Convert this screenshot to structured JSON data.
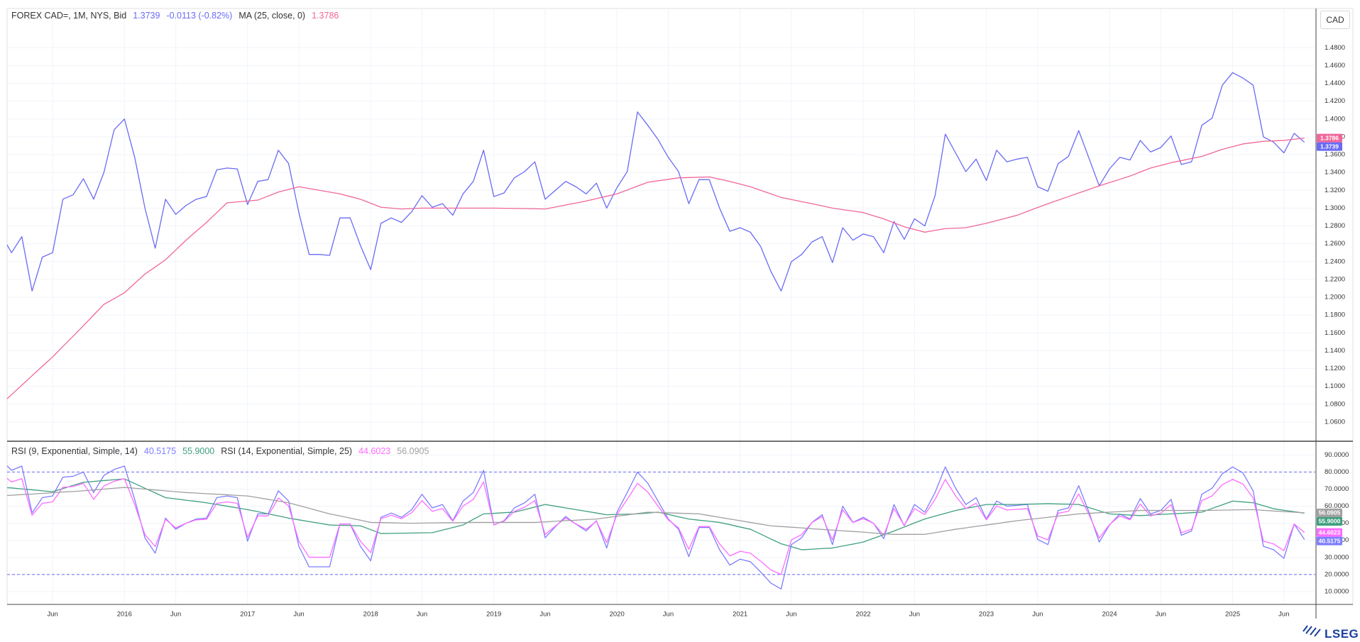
{
  "brand": "LSEG",
  "chart_data": {
    "type": "line",
    "unit": "CAD",
    "categories": [
      null,
      null,
      null,
      null,
      null,
      "Jun",
      null,
      null,
      null,
      null,
      null,
      null,
      "2016",
      null,
      null,
      null,
      null,
      "Jun",
      null,
      null,
      null,
      null,
      null,
      null,
      "2017",
      null,
      null,
      null,
      null,
      "Jun",
      null,
      null,
      null,
      null,
      null,
      null,
      "2018",
      null,
      null,
      null,
      null,
      "Jun",
      null,
      null,
      null,
      null,
      null,
      null,
      "2019",
      null,
      null,
      null,
      null,
      "Jun",
      null,
      null,
      null,
      null,
      null,
      null,
      "2020",
      null,
      null,
      null,
      null,
      "Jun",
      null,
      null,
      null,
      null,
      null,
      null,
      "2021",
      null,
      null,
      null,
      null,
      "Jun",
      null,
      null,
      null,
      null,
      null,
      null,
      "2022",
      null,
      null,
      null,
      null,
      "Jun",
      null,
      null,
      null,
      null,
      null,
      null,
      "2023",
      null,
      null,
      null,
      null,
      "Jun",
      null,
      null,
      null,
      null,
      null,
      null,
      "2024",
      null,
      null,
      null,
      null,
      "Jun",
      null,
      null,
      null,
      null,
      null,
      null,
      "2025",
      null,
      null,
      null,
      null,
      "Jun",
      null,
      null
    ],
    "ylim": [
      1.04,
      1.524
    ],
    "yticks": [
      {
        "value": 1.06,
        "label": "1.0600"
      },
      {
        "value": 1.08,
        "label": "1.0800"
      },
      {
        "value": 1.1,
        "label": "1.1000"
      },
      {
        "value": 1.12,
        "label": "1.1200"
      },
      {
        "value": 1.14,
        "label": "1.1400"
      },
      {
        "value": 1.16,
        "label": "1.1600"
      },
      {
        "value": 1.18,
        "label": "1.1800"
      },
      {
        "value": 1.2,
        "label": "1.2000"
      },
      {
        "value": 1.22,
        "label": "1.2200"
      },
      {
        "value": 1.24,
        "label": "1.2400"
      },
      {
        "value": 1.26,
        "label": "1.2600"
      },
      {
        "value": 1.28,
        "label": "1.2800"
      },
      {
        "value": 1.3,
        "label": "1.3000"
      },
      {
        "value": 1.32,
        "label": "1.3200"
      },
      {
        "value": 1.34,
        "label": "1.3400"
      },
      {
        "value": 1.36,
        "label": "1.3600"
      },
      {
        "value": 1.38,
        "label": "1.3800"
      },
      {
        "value": 1.4,
        "label": "1.4000"
      },
      {
        "value": 1.42,
        "label": "1.4200"
      },
      {
        "value": 1.44,
        "label": "1.4400"
      },
      {
        "value": 1.46,
        "label": "1.4600"
      },
      {
        "value": 1.48,
        "label": "1.4800"
      }
    ],
    "y2lim": [
      2.5,
      97.2
    ],
    "y2ticks": [
      {
        "value": 10,
        "label": "10.0000"
      },
      {
        "value": 20,
        "label": "20.0000"
      },
      {
        "value": 30,
        "label": "30.0000"
      },
      {
        "value": 40,
        "label": "40.0000"
      },
      {
        "value": 50,
        "label": "50.0000"
      },
      {
        "value": 60,
        "label": "60.0000"
      },
      {
        "value": 70,
        "label": "70.0000"
      },
      {
        "value": 80,
        "label": "80.0000"
      },
      {
        "value": 90,
        "label": "90.0000"
      }
    ],
    "y2_hlines": [
      20,
      80
    ],
    "grid": true,
    "series": [
      {
        "name": "FOREX CAD=, 1M, NYS, Bid",
        "color": "#6a6af5",
        "last_label": "1.3739",
        "change_label": "-0.0113 (-0.82%)",
        "values": [
          1.27,
          1.25,
          1.268,
          1.207,
          1.245,
          1.25,
          1.31,
          1.315,
          1.333,
          1.31,
          1.34,
          1.388,
          1.4,
          1.357,
          1.3,
          1.255,
          1.31,
          1.293,
          1.303,
          1.31,
          1.313,
          1.343,
          1.345,
          1.344,
          1.304,
          1.33,
          1.332,
          1.365,
          1.35,
          1.295,
          1.248,
          1.248,
          1.247,
          1.289,
          1.289,
          1.258,
          1.231,
          1.283,
          1.289,
          1.284,
          1.296,
          1.314,
          1.301,
          1.305,
          1.292,
          1.316,
          1.33,
          1.365,
          1.313,
          1.317,
          1.334,
          1.341,
          1.352,
          1.31,
          1.32,
          1.33,
          1.324,
          1.316,
          1.328,
          1.3,
          1.323,
          1.341,
          1.408,
          1.393,
          1.377,
          1.357,
          1.341,
          1.305,
          1.332,
          1.332,
          1.3,
          1.274,
          1.278,
          1.273,
          1.257,
          1.229,
          1.207,
          1.24,
          1.248,
          1.262,
          1.268,
          1.239,
          1.278,
          1.264,
          1.271,
          1.268,
          1.25,
          1.285,
          1.265,
          1.288,
          1.28,
          1.314,
          1.383,
          1.362,
          1.341,
          1.355,
          1.331,
          1.365,
          1.352,
          1.355,
          1.357,
          1.324,
          1.319,
          1.35,
          1.358,
          1.387,
          1.356,
          1.325,
          1.344,
          1.357,
          1.354,
          1.376,
          1.363,
          1.368,
          1.381,
          1.349,
          1.352,
          1.393,
          1.401,
          1.438,
          1.452,
          1.446,
          1.438,
          1.38,
          1.374,
          1.362,
          1.384,
          1.3739
        ]
      },
      {
        "name": "MA (25, close, 0)",
        "color": "#f0679a",
        "last_label": "1.3786",
        "values": [
          1.08,
          1.0907,
          1.1013,
          1.112,
          1.1225,
          1.133,
          1.1447,
          1.1563,
          1.168,
          1.18,
          1.192,
          1.1985,
          1.205,
          1.2155,
          1.226,
          1.234,
          1.242,
          1.253,
          1.264,
          1.274,
          1.284,
          1.295,
          1.306,
          1.307,
          1.308,
          1.309,
          1.3135,
          1.318,
          1.321,
          1.324,
          1.322,
          1.32,
          1.318,
          1.316,
          1.313,
          1.31,
          1.3055,
          1.301,
          1.3,
          1.299,
          1.2995,
          1.3,
          1.3,
          1.3,
          1.3,
          1.3,
          1.3,
          1.3,
          1.3,
          1.2998,
          1.2997,
          1.2995,
          1.2993,
          1.299,
          1.3012,
          1.3035,
          1.3057,
          1.308,
          1.3107,
          1.3133,
          1.316,
          1.3203,
          1.3247,
          1.329,
          1.3307,
          1.3323,
          1.334,
          1.3343,
          1.3347,
          1.335,
          1.3325,
          1.33,
          1.327,
          1.324,
          1.32,
          1.316,
          1.312,
          1.3097,
          1.3073,
          1.305,
          1.3025,
          1.3,
          1.2983,
          1.2967,
          1.295,
          1.2915,
          1.288,
          1.2835,
          1.279,
          1.276,
          1.273,
          1.275,
          1.277,
          1.2775,
          1.278,
          1.2805,
          1.283,
          1.286,
          1.289,
          1.292,
          1.2963,
          1.3007,
          1.305,
          1.309,
          1.313,
          1.317,
          1.321,
          1.325,
          1.3287,
          1.3323,
          1.336,
          1.3405,
          1.345,
          1.348,
          1.351,
          1.3533,
          1.3557,
          1.358,
          1.362,
          1.366,
          1.369,
          1.372,
          1.3735,
          1.375,
          1.3755,
          1.376,
          1.3773,
          1.3786
        ]
      },
      {
        "name": "RSI (9, Exponential, Simple, 14)",
        "color": "#7d7dff",
        "axis": "y2",
        "last_label": "40.5175",
        "values": [
          87,
          81,
          83.5,
          56,
          65,
          66,
          77,
          77.5,
          80,
          68,
          78,
          81.5,
          83.5,
          64,
          41.5,
          32.5,
          53,
          46.5,
          50,
          52.5,
          53,
          65,
          66,
          65,
          39.5,
          55.5,
          55.5,
          69,
          63,
          36.5,
          24.5,
          24.5,
          24.5,
          49.5,
          49.5,
          36.5,
          28,
          53.5,
          56,
          53.5,
          58,
          67,
          59,
          61,
          51.5,
          63,
          68,
          81,
          49,
          51.5,
          59,
          62,
          67,
          41.5,
          48,
          54,
          49.5,
          45.5,
          51.5,
          35.5,
          56.5,
          68,
          80,
          73.5,
          63,
          52.5,
          46.5,
          30.5,
          47.5,
          47.5,
          34.5,
          25.5,
          29,
          27.5,
          21.5,
          15,
          11.5,
          37.5,
          41.5,
          50.5,
          55,
          37.5,
          60,
          50.5,
          53.5,
          50,
          41,
          61,
          48.5,
          61,
          56.5,
          68,
          83,
          70.5,
          61,
          65,
          52.5,
          63,
          60,
          60.5,
          61,
          40.5,
          37.5,
          57.5,
          59,
          72,
          56.5,
          39,
          49,
          55.5,
          52.5,
          64.5,
          55.5,
          57.5,
          64,
          43,
          45.5,
          67,
          70.5,
          79,
          83,
          79.5,
          69,
          36.5,
          34.5,
          29.5,
          49.5,
          40.5175
        ]
      },
      {
        "color": "#3f9f7f",
        "axis": "y2",
        "last_label": "55.9000",
        "values": [
          71,
          70.7,
          70.1,
          69.6,
          69,
          68.5,
          70.3,
          72.2,
          74,
          74.5,
          75,
          75.5,
          76,
          73.3,
          70.5,
          67.8,
          65,
          64.3,
          63.5,
          62.8,
          62,
          61,
          60,
          59,
          58,
          56.8,
          55.5,
          54.3,
          53,
          52,
          51,
          50,
          49,
          48.8,
          48.7,
          48.5,
          46.3,
          44,
          44.1,
          44.2,
          44.3,
          44.4,
          44.5,
          46,
          47.5,
          49,
          52.3,
          55.5,
          55.8,
          56.2,
          56.5,
          58,
          59.5,
          61,
          60,
          59,
          58,
          57,
          56,
          55,
          55.2,
          55.3,
          55.5,
          56,
          56.5,
          55.2,
          53.8,
          52.5,
          51.8,
          51.2,
          50.5,
          49.2,
          47.8,
          46.5,
          43.7,
          40.8,
          38,
          36.3,
          34.5,
          34.8,
          35.2,
          35.5,
          36.7,
          37.8,
          39,
          41.2,
          43.3,
          45.5,
          47.8,
          50.2,
          52.5,
          54.2,
          55.8,
          57.5,
          58.7,
          59.8,
          61,
          61,
          61,
          61,
          61.2,
          61.3,
          61.5,
          61.3,
          61.2,
          61,
          59.2,
          57.3,
          55.5,
          55.2,
          54.8,
          54.5,
          54.8,
          55.2,
          55.5,
          55.8,
          56.2,
          56.5,
          58.7,
          60.8,
          63,
          62.5,
          62,
          60.3,
          58.5,
          57.6,
          56.8,
          55.9
        ]
      },
      {
        "name": "RSI (14, Exponential, Simple, 25)",
        "color": "#ff6cff",
        "axis": "y2",
        "last_label": "44.6023",
        "values": [
          78.9,
          74.2,
          76.1,
          54.7,
          61.7,
          62.5,
          71.1,
          71.5,
          73.4,
          64,
          71.8,
          74.6,
          76.1,
          60.9,
          43.4,
          36.4,
          52.3,
          47.3,
          50,
          52,
          52.3,
          61.7,
          62.5,
          61.7,
          41.8,
          54.3,
          54.3,
          64.8,
          60.1,
          39.5,
          30.1,
          30.1,
          30.1,
          49.6,
          49.6,
          39.5,
          32.8,
          52.7,
          54.7,
          52.7,
          56.2,
          63.3,
          57,
          58.6,
          51.2,
          60.1,
          64,
          74.2,
          49.2,
          51.2,
          57,
          59.4,
          63.3,
          43.4,
          48.4,
          53.1,
          49.6,
          46.5,
          51.2,
          38.7,
          55.1,
          64,
          73.4,
          68.3,
          60.1,
          52,
          47.3,
          34.8,
          48.1,
          48.1,
          37.9,
          30.9,
          33.6,
          32.5,
          27.8,
          22.7,
          20,
          40.3,
          43.4,
          50.4,
          53.9,
          40.3,
          57.8,
          50.4,
          52.7,
          50,
          43,
          58.6,
          48.8,
          58.6,
          55.1,
          64,
          75.7,
          66,
          58.6,
          61.7,
          52,
          60.1,
          57.8,
          58.2,
          58.6,
          42.6,
          40.3,
          55.9,
          57,
          67.2,
          55.1,
          41.4,
          49.2,
          54.3,
          52,
          61.3,
          54.3,
          55.9,
          60.9,
          44.5,
          46.5,
          63.3,
          66,
          72.6,
          75.7,
          73,
          64.8,
          39.5,
          37.9,
          34,
          49.6,
          44.6023
        ]
      },
      {
        "color": "#a0a0a0",
        "axis": "y2",
        "last_label": "56.0905",
        "values": [
          66,
          66.4,
          66.8,
          67.1,
          67.5,
          67.9,
          68.3,
          68.6,
          69,
          69.5,
          70,
          70.5,
          71,
          70.5,
          70,
          69.5,
          69,
          68.5,
          68,
          67.7,
          67.3,
          67,
          66.7,
          66.3,
          66,
          65,
          64,
          63,
          62,
          60.4,
          58.8,
          57.1,
          55.5,
          54.3,
          53,
          51.8,
          50.5,
          50.4,
          50.3,
          50.1,
          50,
          50.1,
          50.2,
          50.3,
          50.3,
          50.4,
          50.5,
          50.5,
          50.5,
          50.5,
          50.5,
          50.5,
          50.5,
          50.8,
          51.2,
          51.5,
          51.8,
          52.2,
          52.5,
          53.3,
          54.1,
          54.9,
          55.7,
          56.5,
          56.3,
          56.1,
          55.9,
          55.7,
          55.5,
          54.5,
          53.5,
          52.5,
          51.5,
          50.5,
          49.5,
          48.5,
          48.1,
          47.7,
          47.3,
          46.8,
          46.4,
          46,
          45.6,
          45.2,
          44.8,
          44.3,
          43.9,
          43.5,
          43.5,
          43.5,
          43.5,
          44.5,
          45.5,
          46.5,
          47.3,
          48.2,
          49,
          49.8,
          50.7,
          51.5,
          52.2,
          52.8,
          53.5,
          54.2,
          54.8,
          55.5,
          55.8,
          56.2,
          56.5,
          56.8,
          57.2,
          57.5,
          57.5,
          57.5,
          57.5,
          57.5,
          57.5,
          57.5,
          57.6,
          57.7,
          57.8,
          57.9,
          58,
          57.6,
          57.2,
          56.8,
          56.5,
          56.0905
        ]
      }
    ]
  }
}
